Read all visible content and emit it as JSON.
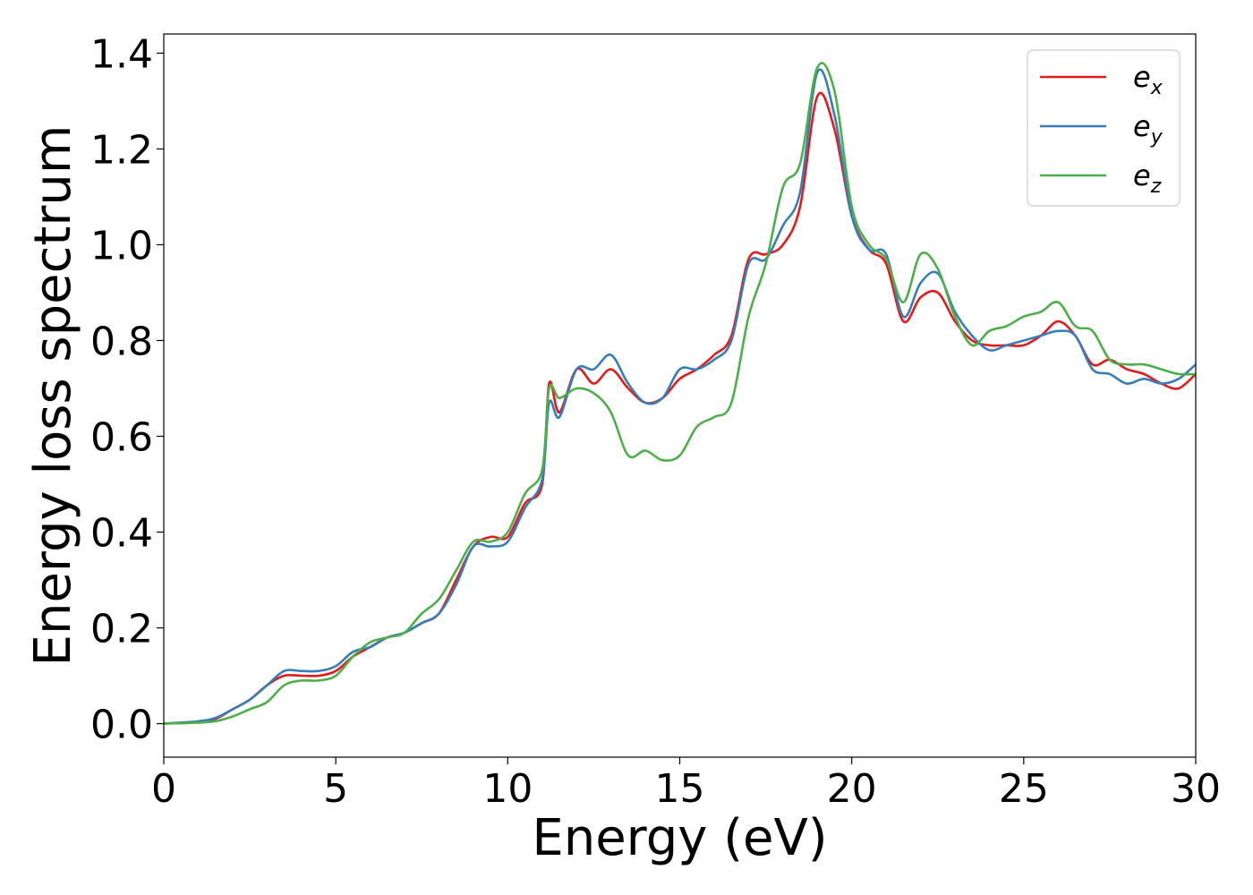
{
  "chart_data": {
    "type": "line",
    "xlabel": "Energy (eV)",
    "ylabel": "Energy loss spectrum",
    "xlim": [
      0,
      30
    ],
    "ylim": [
      -0.07,
      1.44
    ],
    "x_ticks": [
      "0",
      "5",
      "10",
      "15",
      "20",
      "25",
      "30"
    ],
    "y_ticks": [
      "0.0",
      "0.2",
      "0.4",
      "0.6",
      "0.8",
      "1.0",
      "1.2",
      "1.4"
    ],
    "grid": false,
    "legend_position": "top-right",
    "series": [
      {
        "name": "e_x",
        "label_base": "e",
        "label_sub": "x",
        "color": "#e41a1c",
        "x": [
          0,
          1,
          1.5,
          2,
          2.5,
          3,
          3.5,
          4,
          4.5,
          5,
          5.5,
          6,
          6.5,
          7,
          7.5,
          8,
          8.5,
          9,
          9.5,
          10,
          10.5,
          11,
          11.2,
          11.5,
          12,
          12.5,
          13,
          13.5,
          14,
          14.5,
          15,
          15.5,
          16,
          16.5,
          17,
          17.5,
          18,
          18.5,
          19,
          19.5,
          20,
          20.5,
          21,
          21.5,
          22,
          22.5,
          23,
          23.5,
          24,
          24.5,
          25,
          25.5,
          26,
          26.5,
          27,
          27.5,
          28,
          28.5,
          29,
          29.5,
          30
        ],
        "y": [
          0,
          0.003,
          0.01,
          0.03,
          0.05,
          0.08,
          0.1,
          0.1,
          0.1,
          0.11,
          0.14,
          0.16,
          0.18,
          0.19,
          0.21,
          0.23,
          0.3,
          0.37,
          0.39,
          0.39,
          0.46,
          0.5,
          0.71,
          0.65,
          0.74,
          0.71,
          0.74,
          0.7,
          0.67,
          0.68,
          0.72,
          0.74,
          0.77,
          0.81,
          0.97,
          0.98,
          1.0,
          1.08,
          1.31,
          1.24,
          1.06,
          0.99,
          0.96,
          0.84,
          0.89,
          0.9,
          0.84,
          0.8,
          0.79,
          0.79,
          0.79,
          0.81,
          0.84,
          0.81,
          0.75,
          0.76,
          0.74,
          0.73,
          0.71,
          0.7,
          0.73
        ]
      },
      {
        "name": "e_y",
        "label_base": "e",
        "label_sub": "y",
        "color": "#377eb8",
        "x": [
          0,
          1,
          1.5,
          2,
          2.5,
          3,
          3.5,
          4,
          4.5,
          5,
          5.5,
          6,
          6.5,
          7,
          7.5,
          8,
          8.5,
          9,
          9.5,
          10,
          10.5,
          11,
          11.2,
          11.5,
          12,
          12.5,
          13,
          13.5,
          14,
          14.5,
          15,
          15.5,
          16,
          16.5,
          17,
          17.5,
          18,
          18.5,
          19,
          19.5,
          20,
          20.5,
          21,
          21.5,
          22,
          22.5,
          23,
          23.5,
          24,
          24.5,
          25,
          25.5,
          26,
          26.5,
          27,
          27.5,
          28,
          28.5,
          29,
          29.5,
          30
        ],
        "y": [
          0,
          0.005,
          0.012,
          0.03,
          0.05,
          0.08,
          0.11,
          0.11,
          0.11,
          0.12,
          0.15,
          0.16,
          0.18,
          0.19,
          0.21,
          0.23,
          0.29,
          0.37,
          0.37,
          0.38,
          0.45,
          0.51,
          0.67,
          0.64,
          0.74,
          0.74,
          0.77,
          0.71,
          0.67,
          0.68,
          0.74,
          0.74,
          0.76,
          0.8,
          0.96,
          0.97,
          1.04,
          1.11,
          1.36,
          1.27,
          1.06,
          0.99,
          0.98,
          0.85,
          0.92,
          0.94,
          0.86,
          0.81,
          0.78,
          0.79,
          0.8,
          0.81,
          0.82,
          0.81,
          0.74,
          0.73,
          0.71,
          0.72,
          0.71,
          0.72,
          0.75
        ]
      },
      {
        "name": "e_z",
        "label_base": "e",
        "label_sub": "z",
        "color": "#4daf4a",
        "x": [
          0,
          1,
          1.5,
          2,
          2.5,
          3,
          3.5,
          4,
          4.5,
          5,
          5.5,
          6,
          6.5,
          7,
          7.5,
          8,
          8.5,
          9,
          9.5,
          10,
          10.5,
          11,
          11.2,
          11.5,
          12,
          12.5,
          13,
          13.5,
          14,
          14.5,
          15,
          15.5,
          16,
          16.5,
          17,
          17.5,
          18,
          18.5,
          19,
          19.5,
          20,
          20.5,
          21,
          21.5,
          22,
          22.5,
          23,
          23.5,
          24,
          24.5,
          25,
          25.5,
          26,
          26.5,
          27,
          27.5,
          28,
          28.5,
          29,
          29.5,
          30
        ],
        "y": [
          0,
          0.002,
          0.005,
          0.015,
          0.03,
          0.045,
          0.08,
          0.09,
          0.09,
          0.1,
          0.14,
          0.17,
          0.18,
          0.19,
          0.23,
          0.26,
          0.32,
          0.38,
          0.38,
          0.4,
          0.48,
          0.53,
          0.7,
          0.68,
          0.7,
          0.69,
          0.65,
          0.56,
          0.57,
          0.55,
          0.56,
          0.62,
          0.64,
          0.67,
          0.85,
          0.96,
          1.12,
          1.17,
          1.37,
          1.32,
          1.08,
          1.0,
          0.97,
          0.88,
          0.98,
          0.95,
          0.85,
          0.79,
          0.82,
          0.83,
          0.85,
          0.86,
          0.88,
          0.83,
          0.82,
          0.76,
          0.75,
          0.75,
          0.74,
          0.73,
          0.73
        ]
      }
    ]
  }
}
